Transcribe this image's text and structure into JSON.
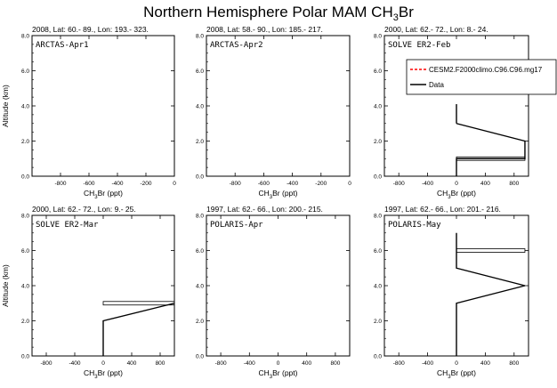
{
  "figure": {
    "title_main": "Northern Hemisphere Polar MAM CH",
    "title_sub": "3",
    "title_tail": "Br"
  },
  "chart_data": [
    {
      "type": "line",
      "header": "2008, Lat:  60.- 89., Lon: 193.- 323.",
      "label": "ARCTAS-Apr1",
      "xlabel_main": "CH",
      "xlabel_sub": "3",
      "xlabel_tail": "Br (ppt)",
      "ylabel": "Altitude (km)",
      "xlim": [
        -1000,
        0
      ],
      "xticks": [
        -800,
        -600,
        -400,
        -200,
        0
      ],
      "xtick_labels": [
        "-800",
        "-600",
        "-400",
        "-200",
        "0"
      ],
      "ylim": [
        0,
        8
      ],
      "yticks": [
        0,
        2,
        4,
        6,
        8
      ],
      "ytick_labels": [
        "0.0",
        "2.0",
        "4.0",
        "6.0",
        "8.0"
      ],
      "series": [],
      "boxes": [],
      "legend": null
    },
    {
      "type": "line",
      "header": "2008, Lat:  58.- 90., Lon: 185.- 217.",
      "label": "ARCTAS-Apr2",
      "xlabel_main": "CH",
      "xlabel_sub": "3",
      "xlabel_tail": "Br (ppt)",
      "ylabel": "",
      "xlim": [
        -1000,
        0
      ],
      "xticks": [
        -800,
        -600,
        -400,
        -200,
        0
      ],
      "xtick_labels": [
        "-800",
        "-600",
        "-400",
        "-200",
        "0"
      ],
      "ylim": [
        0,
        8
      ],
      "yticks": [
        0,
        2,
        4,
        6,
        8
      ],
      "ytick_labels": [
        "0.0",
        "2.0",
        "4.0",
        "6.0",
        "8.0"
      ],
      "series": [],
      "boxes": [],
      "legend": null
    },
    {
      "type": "line",
      "header": "2000, Lat:  62.- 72., Lon:   8.- 24.",
      "label": "SOLVE ER2-Feb",
      "xlabel_main": "CH",
      "xlabel_sub": "3",
      "xlabel_tail": "Br (ppt)",
      "ylabel": "",
      "xlim": [
        -1000,
        1000
      ],
      "xticks": [
        -800,
        -400,
        0,
        400,
        800
      ],
      "xtick_labels": [
        "-800",
        "-400",
        "0",
        "400",
        "800"
      ],
      "ylim": [
        0,
        8
      ],
      "yticks": [
        0,
        2,
        4,
        6,
        8
      ],
      "ytick_labels": [
        "0.0",
        "2.0",
        "4.0",
        "6.0",
        "8.0"
      ],
      "series": [
        {
          "name": "Data",
          "color": "#000000",
          "dashed": false,
          "x": [
            0,
            0,
            0,
            950,
            950,
            0
          ],
          "y": [
            0.0,
            0.05,
            1.0,
            1.0,
            2.0,
            3.0
          ]
        },
        {
          "name": "Data",
          "color": "#000000",
          "dashed": false,
          "x": [
            0,
            0
          ],
          "y": [
            3.0,
            4.1
          ]
        }
      ],
      "boxes": [
        {
          "x0": 0,
          "x1": 950,
          "y0": 0.9,
          "y1": 1.1
        }
      ],
      "legend": {
        "entries": [
          {
            "label": "CESM2.F2000climo.C96.C96.mg17",
            "color": "#ff0000",
            "dashed": true
          },
          {
            "label": "Data",
            "color": "#000000",
            "dashed": false
          }
        ]
      }
    },
    {
      "type": "line",
      "header": "2000, Lat:  62.- 72., Lon:   9.- 25.",
      "label": "SOLVE ER2-Mar",
      "xlabel_main": "CH",
      "xlabel_sub": "3",
      "xlabel_tail": "Br (ppt)",
      "ylabel": "Altitude (km)",
      "xlim": [
        -1000,
        1000
      ],
      "xticks": [
        -800,
        -400,
        0,
        400,
        800
      ],
      "xtick_labels": [
        "-800",
        "-400",
        "0",
        "400",
        "800"
      ],
      "ylim": [
        0,
        8
      ],
      "yticks": [
        0,
        2,
        4,
        6,
        8
      ],
      "ytick_labels": [
        "0.0",
        "2.0",
        "4.0",
        "6.0",
        "8.0"
      ],
      "series": [
        {
          "name": "Data",
          "color": "#000000",
          "dashed": false,
          "x": [
            0,
            0,
            1000
          ],
          "y": [
            0.0,
            2.0,
            3.0
          ]
        }
      ],
      "boxes": [
        {
          "x0": 0,
          "x1": 1000,
          "y0": 2.9,
          "y1": 3.1
        }
      ],
      "legend": null
    },
    {
      "type": "line",
      "header": "1997, Lat:  62.- 66., Lon: 200.- 215.",
      "label": "POLARIS-Apr",
      "xlabel_main": "CH",
      "xlabel_sub": "3",
      "xlabel_tail": "Br (ppt)",
      "ylabel": "",
      "xlim": [
        -1000,
        1000
      ],
      "xticks": [
        -800,
        -400,
        0,
        400,
        800
      ],
      "xtick_labels": [
        "-800",
        "-400",
        "0",
        "400",
        "800"
      ],
      "ylim": [
        0,
        8
      ],
      "yticks": [
        0,
        2,
        4,
        6,
        8
      ],
      "ytick_labels": [
        "0.0",
        "2.0",
        "4.0",
        "6.0",
        "8.0"
      ],
      "series": [],
      "boxes": [],
      "legend": null
    },
    {
      "type": "line",
      "header": "1997, Lat:  62.- 66., Lon: 201.- 216.",
      "label": "POLARIS-May",
      "xlabel_main": "CH",
      "xlabel_sub": "3",
      "xlabel_tail": "Br (ppt)",
      "ylabel": "",
      "xlim": [
        -1000,
        1000
      ],
      "xticks": [
        -800,
        -400,
        0,
        400,
        800
      ],
      "xtick_labels": [
        "-800",
        "-400",
        "0",
        "400",
        "800"
      ],
      "ylim": [
        0,
        8
      ],
      "yticks": [
        0,
        2,
        4,
        6,
        8
      ],
      "ytick_labels": [
        "0.0",
        "2.0",
        "4.0",
        "6.0",
        "8.0"
      ],
      "series": [
        {
          "name": "Data",
          "color": "#000000",
          "dashed": false,
          "x": [
            0,
            0,
            950,
            0,
            0
          ],
          "y": [
            0.0,
            3.0,
            4.0,
            5.0,
            7.0
          ]
        }
      ],
      "boxes": [
        {
          "x0": 0,
          "x1": 950,
          "y0": 5.9,
          "y1": 6.1
        }
      ],
      "legend": null
    }
  ]
}
